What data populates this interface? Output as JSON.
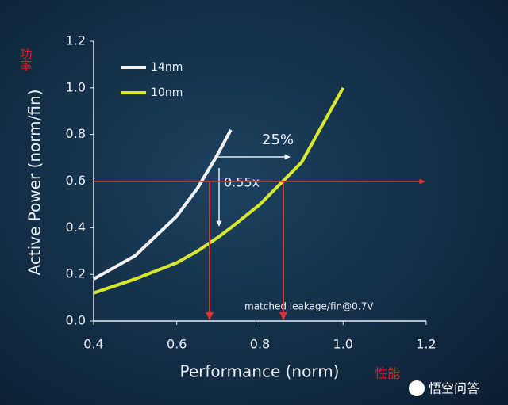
{
  "chart_data": {
    "type": "line",
    "x_label": "Performance (norm)",
    "y_label": "Active Power (norm/fin)",
    "x": [
      0.4,
      0.5,
      0.6,
      0.65,
      0.7,
      0.73,
      0.8,
      0.9,
      1.0
    ],
    "series": [
      {
        "name": "14nm",
        "color": "#f2f2f2",
        "values": [
          0.18,
          0.28,
          0.45,
          0.57,
          0.72,
          0.82,
          null,
          null,
          null
        ]
      },
      {
        "name": "10nm",
        "color": "#d8e830",
        "values": [
          0.12,
          0.18,
          0.25,
          0.3,
          0.36,
          0.4,
          0.5,
          0.68,
          1.0
        ]
      }
    ],
    "xlim": [
      0.4,
      1.2
    ],
    "xticks": [
      0.4,
      0.6,
      0.8,
      {
        "value": 1.0,
        "label": "1.0"
      },
      1.2
    ],
    "ylim": [
      0,
      1.2
    ],
    "yticks": [
      {
        "value": 0,
        "label": "0.0"
      },
      0.2,
      0.4,
      0.6,
      0.8,
      {
        "value": 1.0,
        "label": "1.0"
      },
      1.2
    ],
    "annotations": {
      "gain": "25%",
      "power": "0.55x",
      "note": "matched leakage/fin@0.7V",
      "power_cn": "功率",
      "performance_cn": "性能",
      "watermark": "悟空问答"
    }
  }
}
